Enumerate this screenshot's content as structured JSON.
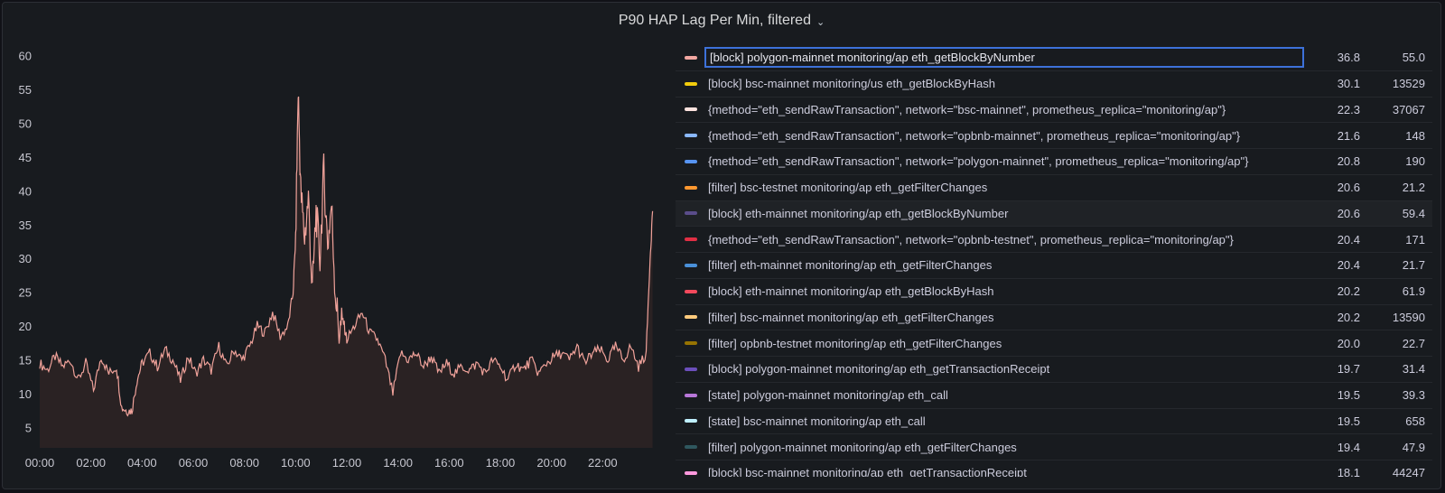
{
  "panel": {
    "title": "P90 HAP Lag Per Min, filtered"
  },
  "colors": {
    "series": "#f0a29a",
    "fill": "#2a2223",
    "background": "#181b1f",
    "selection": "#3d71d9"
  },
  "icons": {
    "title_menu": "chevron-down-icon"
  },
  "chart_data": {
    "type": "line",
    "title": "P90 HAP Lag Per Min, filtered",
    "xlabel": "",
    "ylabel": "",
    "y_ticks": [
      5,
      10,
      15,
      20,
      25,
      30,
      35,
      40,
      45,
      50,
      55,
      60
    ],
    "ylim": [
      2,
      61
    ],
    "x_ticks": [
      "00:00",
      "02:00",
      "04:00",
      "06:00",
      "08:00",
      "10:00",
      "12:00",
      "14:00",
      "16:00",
      "18:00",
      "20:00",
      "22:00"
    ],
    "xlim_hours": [
      0,
      24
    ],
    "grid": false,
    "legend_position": "right",
    "series": [
      {
        "name": "[block] polygon-mainnet monitoring/ap eth_getBlockByNumber",
        "points": [
          [
            0,
            14.5
          ],
          [
            0.3,
            13.5
          ],
          [
            0.6,
            15.5
          ],
          [
            0.9,
            14
          ],
          [
            1.2,
            15
          ],
          [
            1.5,
            12
          ],
          [
            1.8,
            14.5
          ],
          [
            2.1,
            10.5
          ],
          [
            2.4,
            15.5
          ],
          [
            2.7,
            13
          ],
          [
            3,
            14
          ],
          [
            3.2,
            8
          ],
          [
            3.4,
            7.5
          ],
          [
            3.6,
            7.5
          ],
          [
            3.8,
            12
          ],
          [
            4,
            14.5
          ],
          [
            4.3,
            16
          ],
          [
            4.6,
            14
          ],
          [
            4.9,
            16.5
          ],
          [
            5.2,
            15
          ],
          [
            5.5,
            12
          ],
          [
            5.8,
            15.5
          ],
          [
            6.1,
            13
          ],
          [
            6.4,
            15
          ],
          [
            6.7,
            13.5
          ],
          [
            7,
            17
          ],
          [
            7.3,
            14
          ],
          [
            7.6,
            16.5
          ],
          [
            7.9,
            15
          ],
          [
            8.2,
            17
          ],
          [
            8.5,
            20
          ],
          [
            8.8,
            19
          ],
          [
            9.1,
            22
          ],
          [
            9.4,
            18.5
          ],
          [
            9.7,
            20
          ],
          [
            9.9,
            25
          ],
          [
            10,
            33
          ],
          [
            10.1,
            55
          ],
          [
            10.2,
            40
          ],
          [
            10.35,
            33
          ],
          [
            10.5,
            39
          ],
          [
            10.65,
            25
          ],
          [
            10.8,
            37
          ],
          [
            10.95,
            30
          ],
          [
            11.1,
            43
          ],
          [
            11.25,
            32
          ],
          [
            11.4,
            38
          ],
          [
            11.55,
            25
          ],
          [
            11.7,
            19
          ],
          [
            11.85,
            21
          ],
          [
            12,
            18
          ],
          [
            12.3,
            20
          ],
          [
            12.6,
            22
          ],
          [
            12.9,
            19
          ],
          [
            13.2,
            18
          ],
          [
            13.5,
            15
          ],
          [
            13.8,
            10
          ],
          [
            14.1,
            16
          ],
          [
            14.4,
            15
          ],
          [
            14.7,
            16
          ],
          [
            15,
            14
          ],
          [
            15.3,
            15.5
          ],
          [
            15.6,
            13
          ],
          [
            15.9,
            14.5
          ],
          [
            16.2,
            13
          ],
          [
            16.5,
            14
          ],
          [
            16.8,
            13.5
          ],
          [
            17.1,
            14.5
          ],
          [
            17.4,
            13
          ],
          [
            17.7,
            15
          ],
          [
            18,
            14
          ],
          [
            18.3,
            12
          ],
          [
            18.6,
            14.5
          ],
          [
            18.9,
            13.5
          ],
          [
            19.2,
            15
          ],
          [
            19.5,
            13
          ],
          [
            19.8,
            14.5
          ],
          [
            20.1,
            15.5
          ],
          [
            20.4,
            16
          ],
          [
            20.7,
            15
          ],
          [
            21,
            17
          ],
          [
            21.3,
            14.5
          ],
          [
            21.6,
            16
          ],
          [
            21.9,
            16.5
          ],
          [
            22.2,
            15
          ],
          [
            22.5,
            17
          ],
          [
            22.8,
            15
          ],
          [
            23.1,
            17
          ],
          [
            23.4,
            14
          ],
          [
            23.7,
            16
          ],
          [
            23.85,
            30
          ],
          [
            23.95,
            37
          ]
        ]
      }
    ]
  },
  "legend": {
    "items": [
      {
        "label": "[block] polygon-mainnet monitoring/ap eth_getBlockByNumber",
        "color": "#f2a7a1",
        "v1": "36.8",
        "v2": "55.0",
        "selected": true
      },
      {
        "label": "[block] bsc-mainnet monitoring/us eth_getBlockByHash",
        "color": "#f2cc0c",
        "v1": "30.1",
        "v2": "13529"
      },
      {
        "label": "{method=\"eth_sendRawTransaction\", network=\"bsc-mainnet\", prometheus_replica=\"monitoring/ap\"}",
        "color": "#fce2de",
        "v1": "22.3",
        "v2": "37067"
      },
      {
        "label": "{method=\"eth_sendRawTransaction\", network=\"opbnb-mainnet\", prometheus_replica=\"monitoring/ap\"}",
        "color": "#8ab8ff",
        "v1": "21.6",
        "v2": "148"
      },
      {
        "label": "{method=\"eth_sendRawTransaction\", network=\"polygon-mainnet\", prometheus_replica=\"monitoring/ap\"}",
        "color": "#5794f2",
        "v1": "20.8",
        "v2": "190"
      },
      {
        "label": "[filter] bsc-testnet monitoring/ap eth_getFilterChanges",
        "color": "#ff9830",
        "v1": "20.6",
        "v2": "21.2"
      },
      {
        "label": "[block] eth-mainnet monitoring/ap eth_getBlockByNumber",
        "color": "#5a4d8a",
        "v1": "20.6",
        "v2": "59.4",
        "hovered": true
      },
      {
        "label": "{method=\"eth_sendRawTransaction\", network=\"opbnb-testnet\", prometheus_replica=\"monitoring/ap\"}",
        "color": "#e02f44",
        "v1": "20.4",
        "v2": "171"
      },
      {
        "label": "[filter] eth-mainnet monitoring/ap eth_getFilterChanges",
        "color": "#4a90d9",
        "v1": "20.4",
        "v2": "21.7"
      },
      {
        "label": "[block] eth-mainnet monitoring/ap eth_getBlockByHash",
        "color": "#f2495c",
        "v1": "20.2",
        "v2": "61.9"
      },
      {
        "label": "[filter] bsc-mainnet monitoring/ap eth_getFilterChanges",
        "color": "#ffcb7d",
        "v1": "20.2",
        "v2": "13590"
      },
      {
        "label": "[filter] opbnb-testnet monitoring/ap eth_getFilterChanges",
        "color": "#967302",
        "v1": "20.0",
        "v2": "22.7"
      },
      {
        "label": "[block] polygon-mainnet monitoring/ap eth_getTransactionReceipt",
        "color": "#6b4fbb",
        "v1": "19.7",
        "v2": "31.4"
      },
      {
        "label": "[state] polygon-mainnet monitoring/ap eth_call",
        "color": "#b877d9",
        "v1": "19.5",
        "v2": "39.3"
      },
      {
        "label": "[state] bsc-mainnet monitoring/ap eth_call",
        "color": "#c0f0ff",
        "v1": "19.5",
        "v2": "658"
      },
      {
        "label": "[filter] polygon-mainnet monitoring/ap eth_getFilterChanges",
        "color": "#2f575e",
        "v1": "19.4",
        "v2": "47.9"
      },
      {
        "label": "[block] bsc-mainnet monitoring/ap eth_getTransactionReceipt",
        "color": "#ff99dd",
        "v1": "18.1",
        "v2": "44247"
      }
    ]
  }
}
